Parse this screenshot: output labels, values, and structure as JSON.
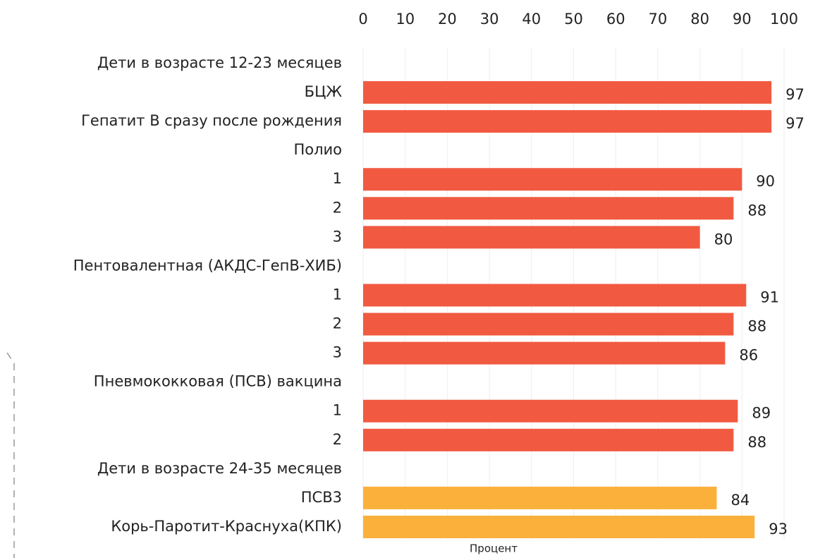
{
  "chart_data": {
    "type": "bar",
    "orientation": "horizontal",
    "categories": [
      "Дети в возрасте 12-23 месяцев",
      "БЦЖ",
      "Гепатит В сразу после рождения",
      "Полио",
      "1",
      "2",
      "3",
      "Пентовалентная (АКДС-ГепВ-ХИБ)",
      "1",
      "2",
      "3",
      "Пневмококковая (ПСВ) вакцина",
      "1",
      "2",
      "Дети в возрасте 24-35 месяцев",
      "ПСВ3",
      "Корь-Паротит-Краснуха(КПК)"
    ],
    "values": [
      null,
      97,
      97,
      null,
      90,
      88,
      80,
      null,
      91,
      88,
      86,
      null,
      89,
      88,
      null,
      84,
      93
    ],
    "colors": [
      null,
      "#f15a40",
      "#f15a40",
      null,
      "#f15a40",
      "#f15a40",
      "#f15a40",
      null,
      "#f15a40",
      "#f15a40",
      "#f15a40",
      null,
      "#f15a40",
      "#f15a40",
      null,
      "#fbb03b",
      "#fbb03b"
    ],
    "xlabel": "Процент",
    "xlim": [
      0,
      100
    ],
    "xticks": [
      0,
      10,
      20,
      30,
      40,
      50,
      60,
      70,
      80,
      90,
      100
    ],
    "grid": true
  }
}
